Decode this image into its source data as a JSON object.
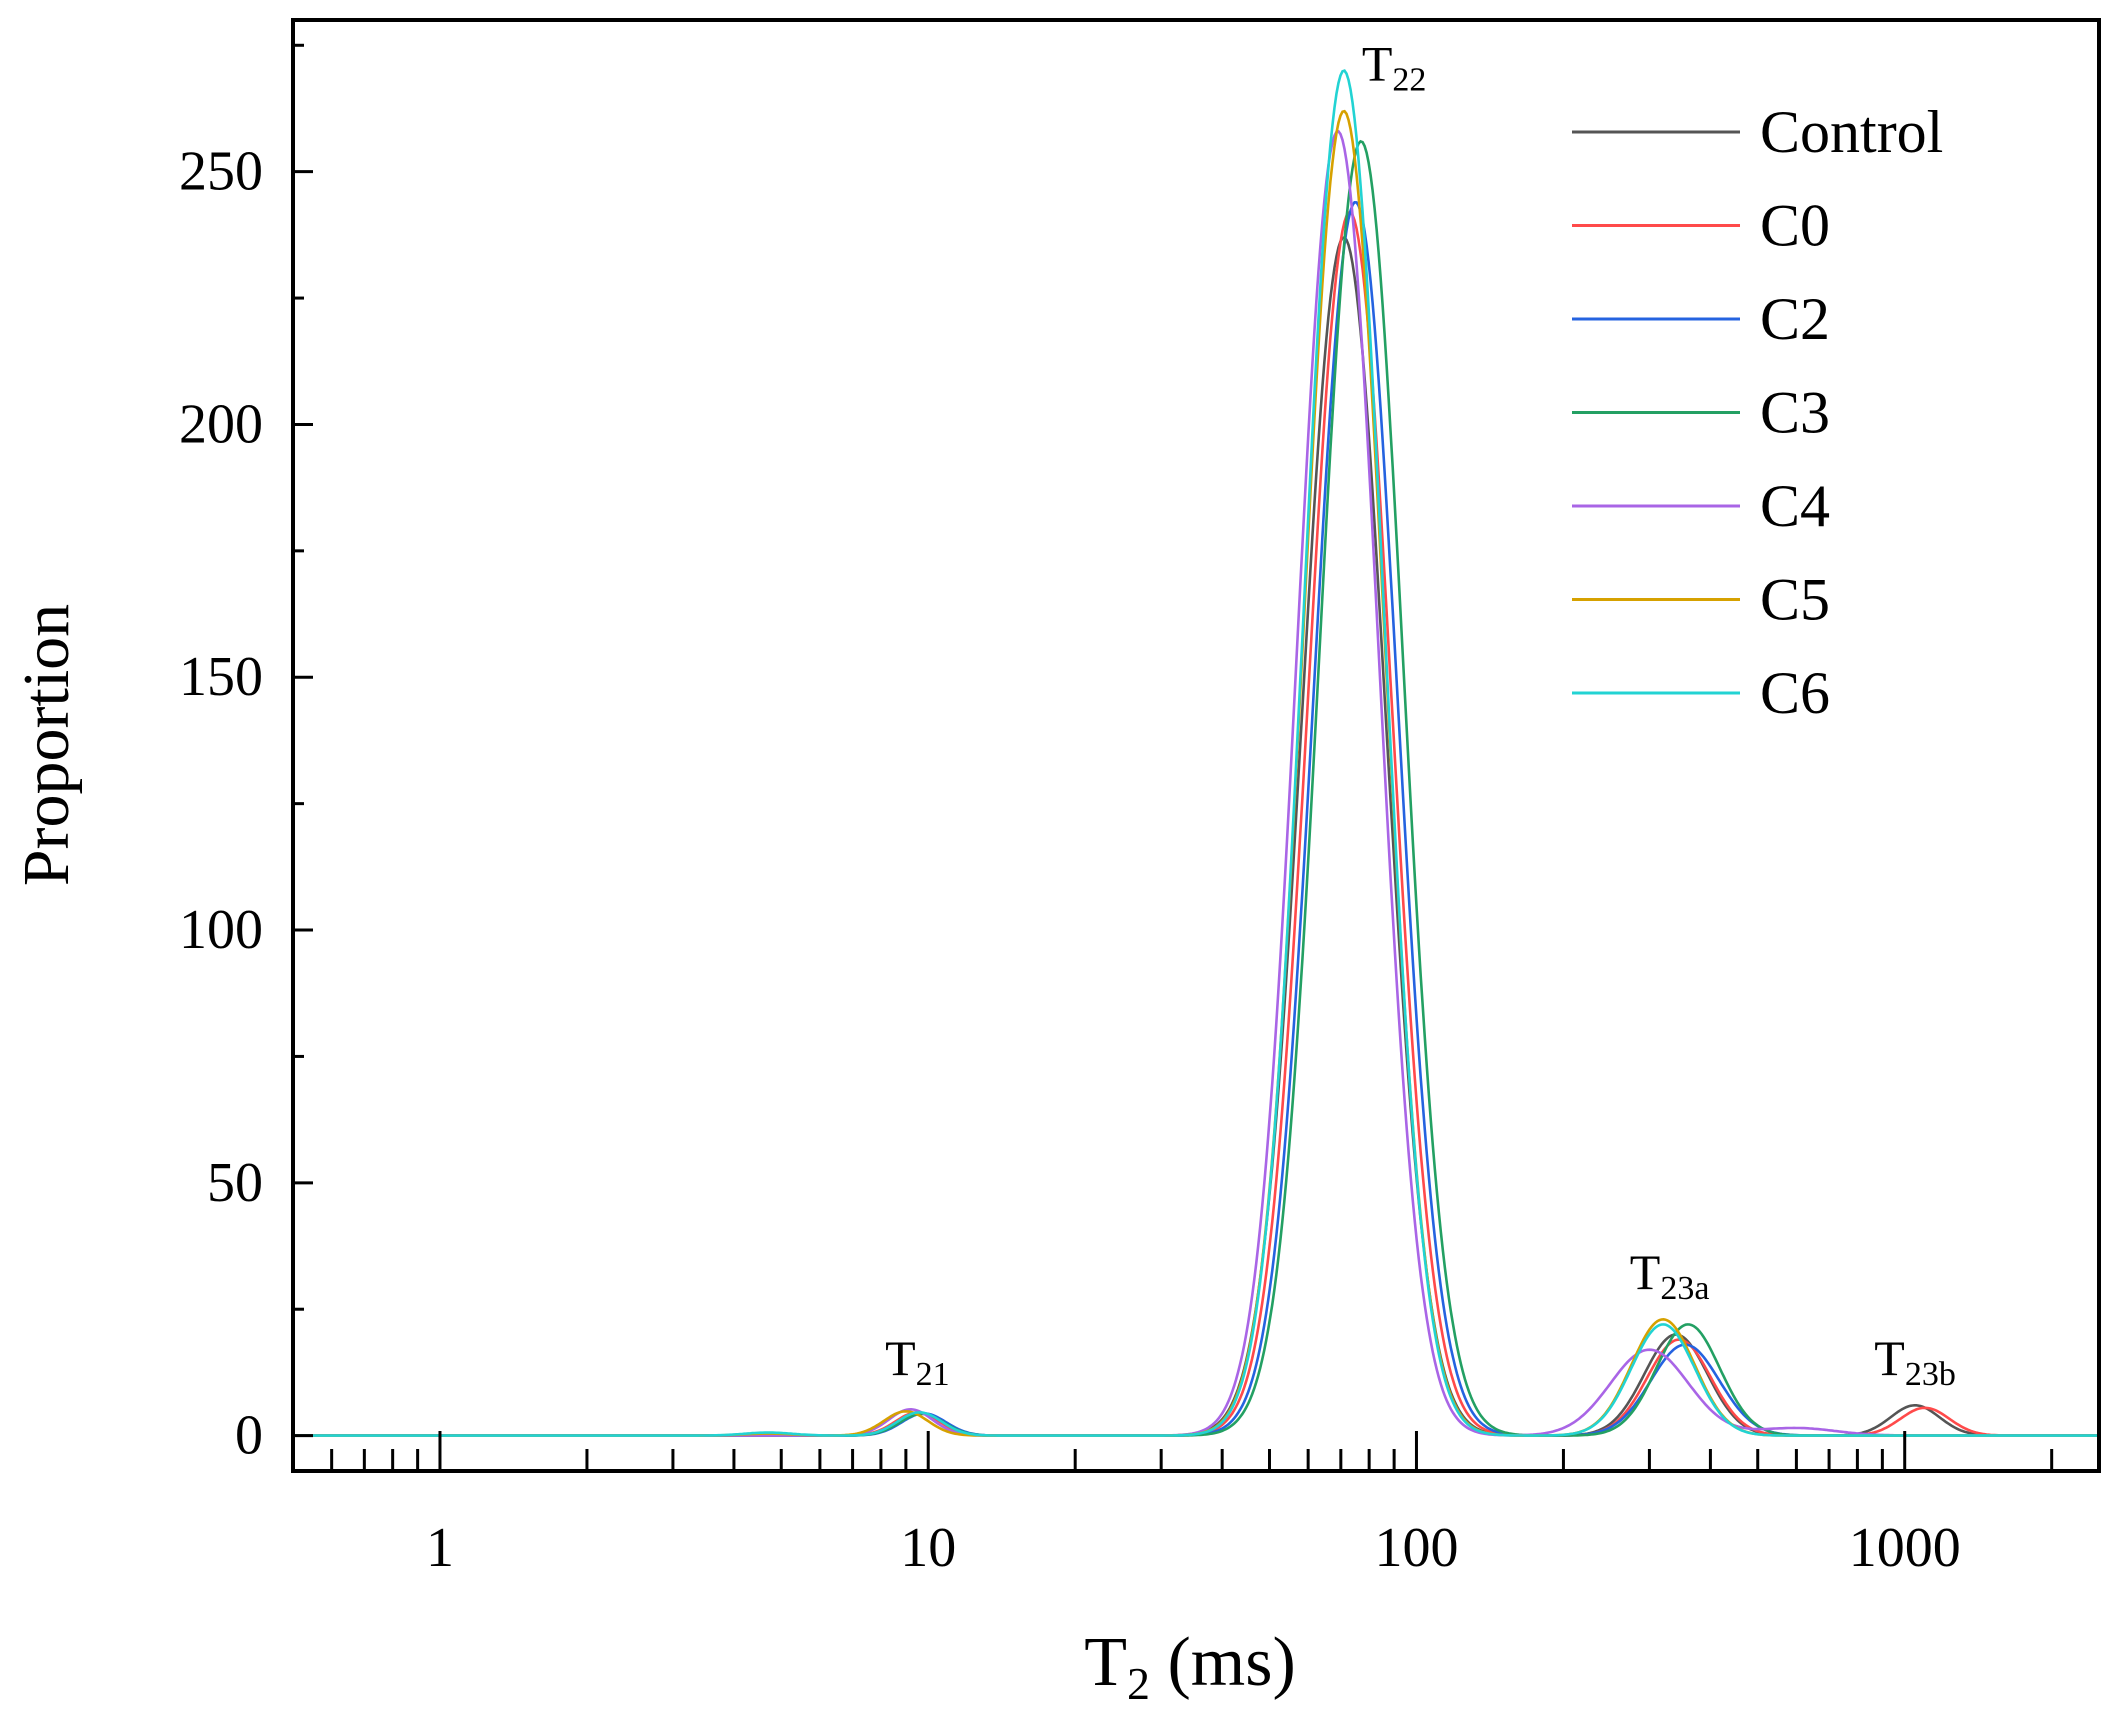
{
  "chart_data": {
    "type": "line",
    "title": "",
    "xlabel": "T",
    "xlabel_sub": "2",
    "xlabel_unit": " (ms)",
    "ylabel": "Proportion",
    "xscale": "log",
    "xlim": [
      0.5,
      2500
    ],
    "ylim": [
      -7,
      280
    ],
    "xticks": [
      1,
      10,
      100,
      1000
    ],
    "xtick_labels": [
      "1",
      "10",
      "100",
      "1000"
    ],
    "yticks": [
      0,
      50,
      100,
      150,
      200,
      250
    ],
    "ytick_labels": [
      "0",
      "50",
      "100",
      "150",
      "200",
      "250"
    ],
    "grid": false,
    "legend_position": "top-right",
    "annotations": [
      {
        "text": "T",
        "sub": "21",
        "x": 9.5,
        "y": 12
      },
      {
        "text": "T",
        "sub": "22",
        "x": 90,
        "y": 268
      },
      {
        "text": "T",
        "sub": "23a",
        "x": 330,
        "y": 29
      },
      {
        "text": "T",
        "sub": "23b",
        "x": 1050,
        "y": 12
      }
    ],
    "peak_model": "gaussian in log10(T2); each peak = [center_ms, height, sigma_decades]",
    "series": [
      {
        "name": "Control",
        "color": "#555555",
        "peaks": [
          [
            9.6,
            4.5,
            0.045
          ],
          [
            71,
            237,
            0.085
          ],
          [
            340,
            20,
            0.065
          ],
          [
            1050,
            6,
            0.05
          ]
        ]
      },
      {
        "name": "C0",
        "color": "#ff4a4a",
        "peaks": [
          [
            9.5,
            4.6,
            0.045
          ],
          [
            73,
            242,
            0.085
          ],
          [
            345,
            19,
            0.065
          ],
          [
            1100,
            5.5,
            0.05
          ]
        ]
      },
      {
        "name": "C2",
        "color": "#2563e0",
        "peaks": [
          [
            9.8,
            4.4,
            0.045
          ],
          [
            75,
            244,
            0.085
          ],
          [
            355,
            18,
            0.07
          ]
        ]
      },
      {
        "name": "C3",
        "color": "#23a063",
        "peaks": [
          [
            9.7,
            4.3,
            0.045
          ],
          [
            77,
            256,
            0.085
          ],
          [
            360,
            22,
            0.065
          ]
        ]
      },
      {
        "name": "C4",
        "color": "#a965e6",
        "peaks": [
          [
            9.2,
            5.2,
            0.045
          ],
          [
            69,
            258,
            0.083
          ],
          [
            300,
            17,
            0.08
          ],
          [
            600,
            1.5,
            0.08
          ]
        ]
      },
      {
        "name": "C5",
        "color": "#d6a100",
        "peaks": [
          [
            9.0,
            4.8,
            0.045
          ],
          [
            71,
            262,
            0.083
          ],
          [
            320,
            23,
            0.065
          ],
          [
            4.7,
            0.4,
            0.05
          ]
        ]
      },
      {
        "name": "C6",
        "color": "#22d3d3",
        "peaks": [
          [
            9.6,
            4.6,
            0.045
          ],
          [
            71,
            270,
            0.082
          ],
          [
            320,
            22,
            0.065
          ],
          [
            4.7,
            0.6,
            0.05
          ]
        ]
      }
    ]
  }
}
